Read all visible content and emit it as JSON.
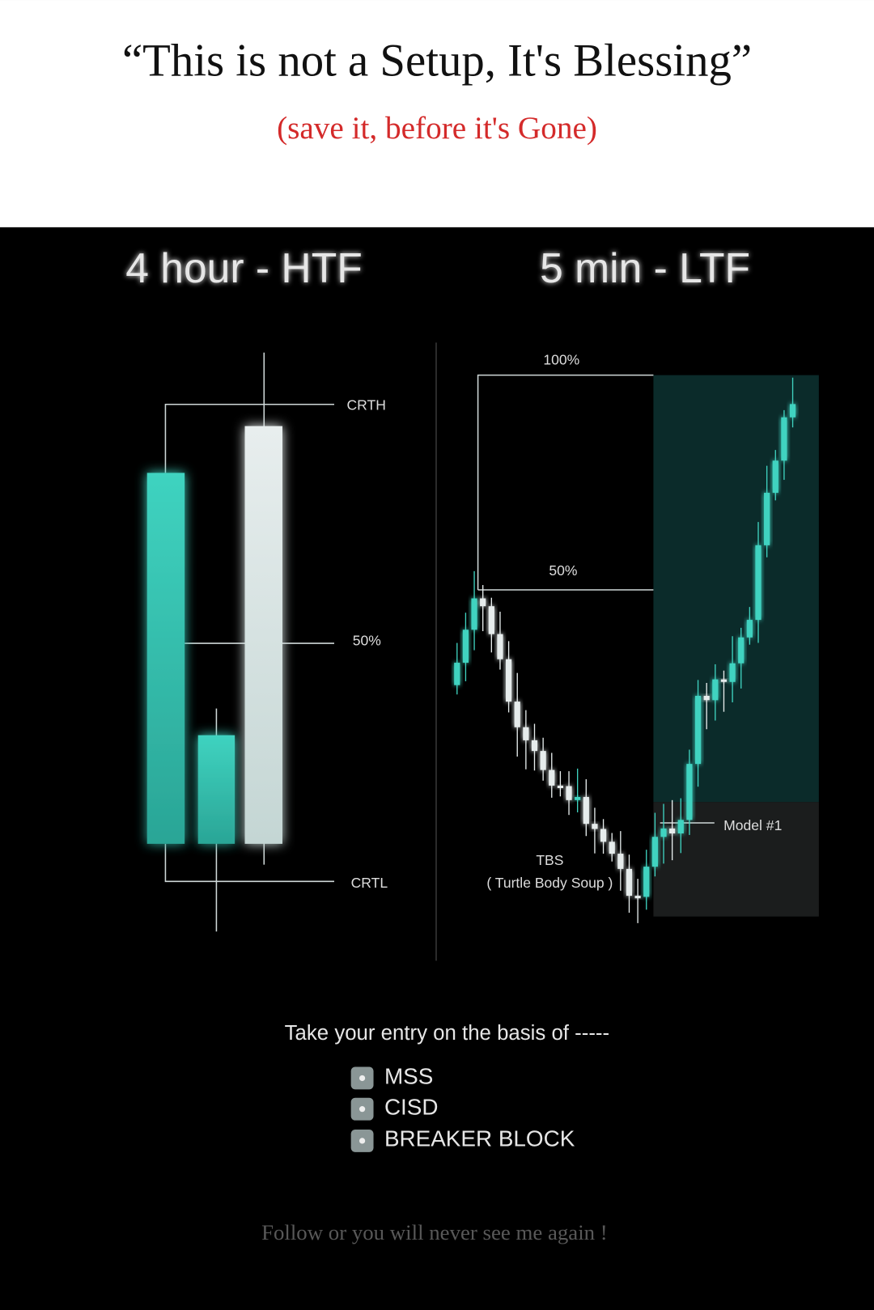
{
  "header": {
    "title": "“This is not a Setup, It's Blessing”",
    "subtitle": "(save it, before it's Gone)"
  },
  "panels": [
    {
      "title": "4 hour - HTF",
      "labels": [
        "CRTH",
        "50%",
        "CRTL"
      ]
    },
    {
      "title": "5 min - LTF",
      "labels": [
        "100%",
        "50%",
        "Model #1",
        "TBS",
        "( Turtle Body Soup )"
      ]
    }
  ],
  "entry": {
    "heading": "Take your entry on the basis of -----",
    "items": [
      "MSS",
      "CISD",
      "BREAKER BLOCK"
    ]
  },
  "footer": "Follow or you will never see me again !"
}
